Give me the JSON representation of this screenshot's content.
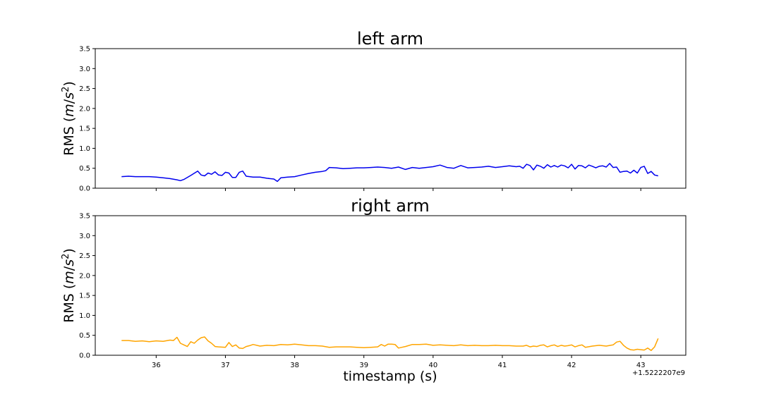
{
  "chart_data": [
    {
      "type": "line",
      "title": "left arm",
      "ylabel": "RMS (m/s²)",
      "ylim": [
        0,
        3.5
      ],
      "yticks": [
        "0.0",
        "0.5",
        "1.0",
        "1.5",
        "2.0",
        "2.5",
        "3.0",
        "3.5"
      ],
      "xlim": [
        35.12,
        43.65
      ],
      "grid": false,
      "series": [
        {
          "color": "#0000ee",
          "x": [
            35.5,
            35.6,
            35.7,
            35.8,
            35.9,
            36.0,
            36.1,
            36.2,
            36.3,
            36.35,
            36.4,
            36.5,
            36.6,
            36.65,
            36.7,
            36.75,
            36.8,
            36.85,
            36.9,
            36.95,
            37.0,
            37.05,
            37.1,
            37.15,
            37.2,
            37.25,
            37.3,
            37.35,
            37.4,
            37.5,
            37.6,
            37.7,
            37.75,
            37.8,
            37.9,
            38.0,
            38.1,
            38.2,
            38.3,
            38.4,
            38.45,
            38.5,
            38.6,
            38.7,
            38.8,
            38.9,
            39.0,
            39.1,
            39.2,
            39.3,
            39.4,
            39.5,
            39.6,
            39.7,
            39.8,
            39.9,
            40.0,
            40.1,
            40.2,
            40.3,
            40.4,
            40.5,
            40.6,
            40.7,
            40.8,
            40.9,
            41.0,
            41.1,
            41.2,
            41.25,
            41.3,
            41.35,
            41.4,
            41.45,
            41.5,
            41.55,
            41.6,
            41.65,
            41.7,
            41.75,
            41.8,
            41.85,
            41.9,
            41.95,
            42.0,
            42.05,
            42.1,
            42.15,
            42.2,
            42.25,
            42.3,
            42.35,
            42.4,
            42.45,
            42.5,
            42.55,
            42.6,
            42.65,
            42.7,
            42.75,
            42.8,
            42.85,
            42.9,
            42.95,
            43.0,
            43.05,
            43.1,
            43.15,
            43.2,
            43.25
          ],
          "y": [
            0.29,
            0.3,
            0.29,
            0.29,
            0.29,
            0.28,
            0.26,
            0.24,
            0.21,
            0.19,
            0.22,
            0.32,
            0.43,
            0.33,
            0.31,
            0.38,
            0.35,
            0.41,
            0.33,
            0.32,
            0.4,
            0.38,
            0.27,
            0.27,
            0.4,
            0.43,
            0.3,
            0.29,
            0.28,
            0.28,
            0.25,
            0.23,
            0.17,
            0.26,
            0.28,
            0.29,
            0.33,
            0.37,
            0.4,
            0.42,
            0.44,
            0.52,
            0.51,
            0.49,
            0.5,
            0.51,
            0.51,
            0.52,
            0.53,
            0.52,
            0.5,
            0.53,
            0.47,
            0.52,
            0.5,
            0.52,
            0.54,
            0.58,
            0.52,
            0.5,
            0.57,
            0.51,
            0.52,
            0.53,
            0.55,
            0.52,
            0.54,
            0.56,
            0.54,
            0.55,
            0.5,
            0.6,
            0.57,
            0.46,
            0.58,
            0.55,
            0.5,
            0.59,
            0.53,
            0.57,
            0.53,
            0.58,
            0.56,
            0.51,
            0.6,
            0.48,
            0.57,
            0.56,
            0.51,
            0.58,
            0.55,
            0.51,
            0.55,
            0.56,
            0.53,
            0.62,
            0.52,
            0.53,
            0.4,
            0.42,
            0.43,
            0.38,
            0.45,
            0.38,
            0.52,
            0.55,
            0.37,
            0.42,
            0.33,
            0.31
          ]
        }
      ]
    },
    {
      "type": "line",
      "title": "right arm",
      "xlabel": "timestamp (s)",
      "ylabel": "RMS (m/s²)",
      "ylim": [
        0,
        3.5
      ],
      "yticks": [
        "0.0",
        "0.5",
        "1.0",
        "1.5",
        "2.0",
        "2.5",
        "3.0",
        "3.5"
      ],
      "xlim": [
        35.12,
        43.65
      ],
      "xticks": [
        36,
        37,
        38,
        39,
        40,
        41,
        42,
        43
      ],
      "offset_text": "+1.5222207e9",
      "grid": false,
      "series": [
        {
          "color": "#ffa500",
          "x": [
            35.5,
            35.6,
            35.7,
            35.8,
            35.9,
            36.0,
            36.1,
            36.2,
            36.25,
            36.3,
            36.35,
            36.4,
            36.45,
            36.5,
            36.55,
            36.6,
            36.65,
            36.7,
            36.75,
            36.8,
            36.85,
            36.9,
            37.0,
            37.05,
            37.1,
            37.15,
            37.2,
            37.25,
            37.3,
            37.35,
            37.4,
            37.5,
            37.6,
            37.7,
            37.8,
            37.9,
            38.0,
            38.1,
            38.2,
            38.3,
            38.4,
            38.5,
            38.6,
            38.7,
            38.8,
            38.9,
            39.0,
            39.1,
            39.2,
            39.25,
            39.3,
            39.35,
            39.4,
            39.45,
            39.5,
            39.55,
            39.6,
            39.7,
            39.8,
            39.9,
            40.0,
            40.1,
            40.2,
            40.3,
            40.4,
            40.5,
            40.6,
            40.7,
            40.8,
            40.9,
            41.0,
            41.1,
            41.2,
            41.3,
            41.35,
            41.4,
            41.45,
            41.5,
            41.55,
            41.6,
            41.65,
            41.7,
            41.75,
            41.8,
            41.85,
            41.9,
            41.95,
            42.0,
            42.05,
            42.1,
            42.15,
            42.2,
            42.3,
            42.4,
            42.5,
            42.6,
            42.65,
            42.7,
            42.75,
            42.8,
            42.85,
            42.9,
            42.95,
            43.0,
            43.05,
            43.1,
            43.15,
            43.2,
            43.25
          ],
          "y": [
            0.37,
            0.37,
            0.35,
            0.36,
            0.34,
            0.36,
            0.35,
            0.38,
            0.37,
            0.45,
            0.3,
            0.26,
            0.22,
            0.34,
            0.3,
            0.38,
            0.44,
            0.46,
            0.36,
            0.3,
            0.22,
            0.21,
            0.2,
            0.32,
            0.22,
            0.26,
            0.18,
            0.17,
            0.22,
            0.24,
            0.27,
            0.23,
            0.25,
            0.24,
            0.27,
            0.26,
            0.28,
            0.26,
            0.24,
            0.24,
            0.23,
            0.2,
            0.21,
            0.21,
            0.21,
            0.2,
            0.19,
            0.2,
            0.21,
            0.27,
            0.23,
            0.28,
            0.28,
            0.27,
            0.18,
            0.2,
            0.22,
            0.27,
            0.27,
            0.28,
            0.25,
            0.26,
            0.25,
            0.24,
            0.26,
            0.24,
            0.25,
            0.24,
            0.24,
            0.25,
            0.24,
            0.24,
            0.23,
            0.23,
            0.25,
            0.21,
            0.23,
            0.22,
            0.25,
            0.26,
            0.21,
            0.24,
            0.26,
            0.22,
            0.25,
            0.23,
            0.24,
            0.26,
            0.21,
            0.24,
            0.26,
            0.2,
            0.23,
            0.25,
            0.23,
            0.26,
            0.33,
            0.35,
            0.25,
            0.18,
            0.14,
            0.13,
            0.15,
            0.14,
            0.13,
            0.18,
            0.12,
            0.21,
            0.42
          ]
        }
      ]
    }
  ]
}
